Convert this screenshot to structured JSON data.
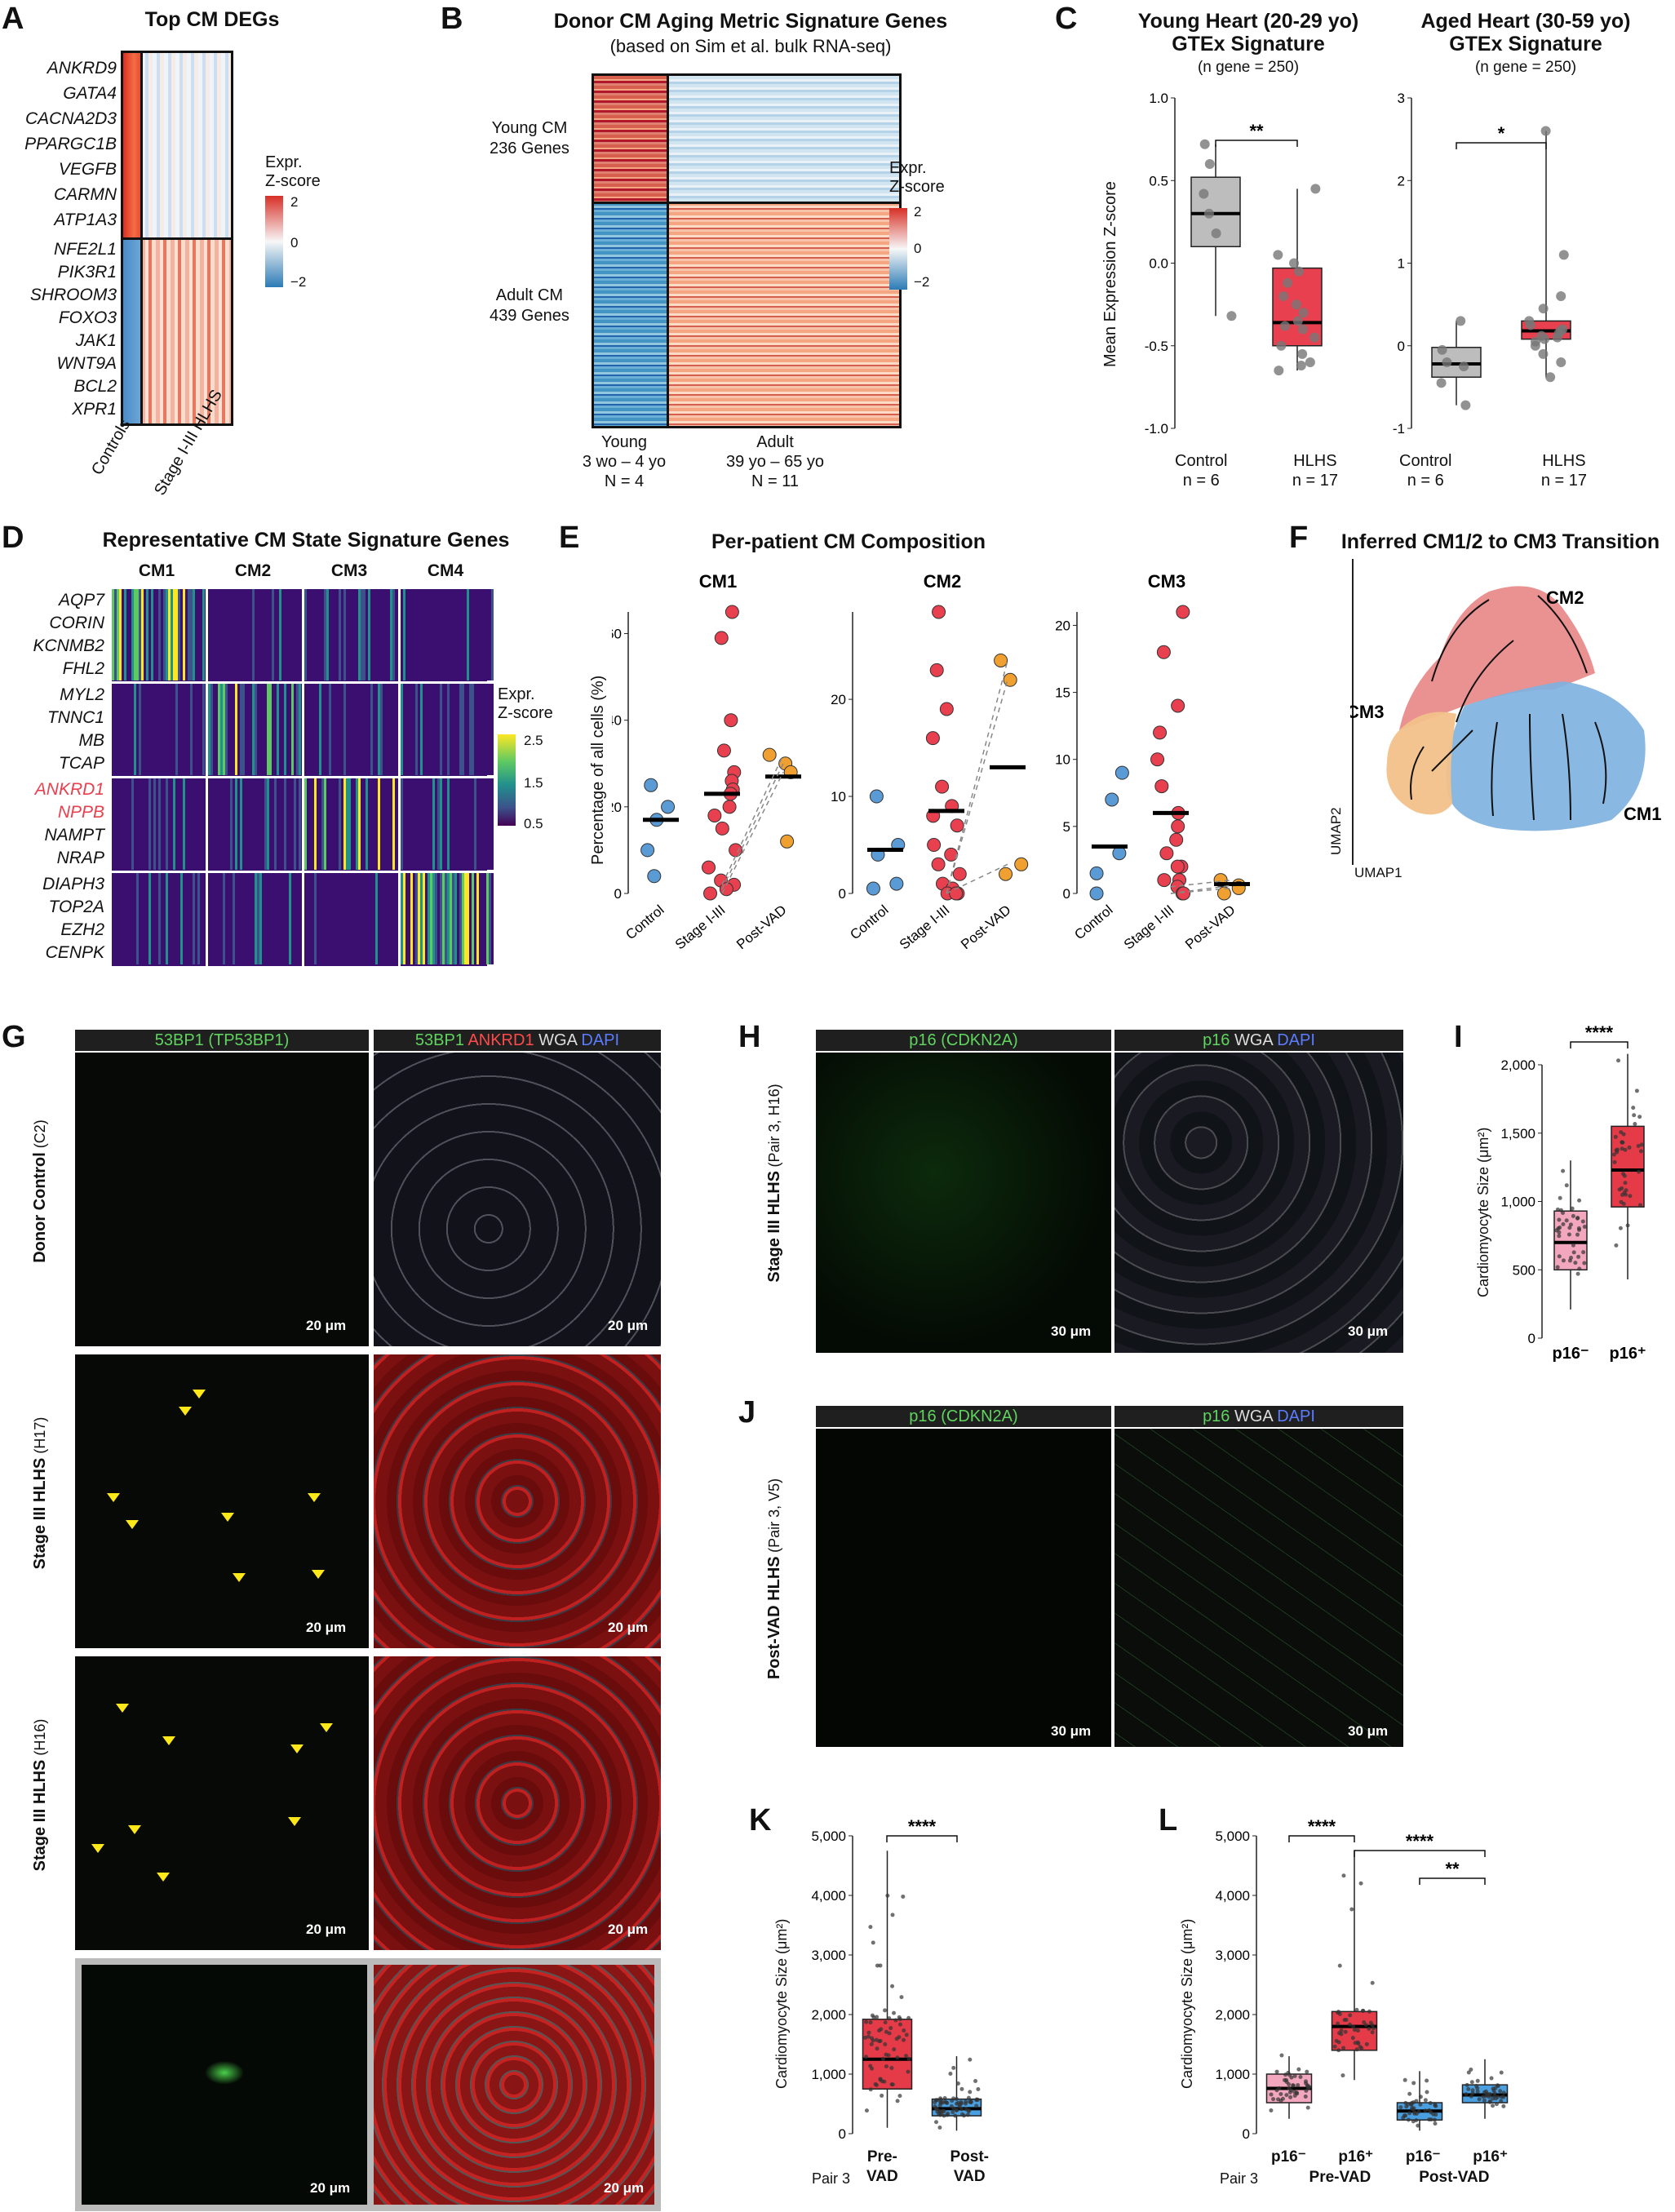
{
  "panels": {
    "A": {
      "letter": "A",
      "title": "Top CM DEGs",
      "genes_top": [
        "ANKRD9",
        "GATA4",
        "CACNA2D3",
        "PPARGC1B",
        "VEGFB",
        "CARMN",
        "ATP1A3"
      ],
      "genes_bottom": [
        "NFE2L1",
        "PIK3R1",
        "SHROOM3",
        "FOXO3",
        "JAK1",
        "WNT9A",
        "BCL2",
        "XPR1"
      ],
      "legend_title": "Expr.\nZ-score",
      "legend_ticks": [
        "2",
        "0",
        "−2"
      ],
      "x_labels": [
        "Controls",
        "Stage I-III HLHS"
      ]
    },
    "B": {
      "letter": "B",
      "title": "Donor CM Aging Metric Signature Genes",
      "subtitle": "(based on Sim et al. bulk RNA-seq)",
      "row_group_1": "Young CM\n236 Genes",
      "row_group_2": "Adult CM\n439 Genes",
      "col_young": "Young\n3 wo – 4 yo\nN = 4",
      "col_adult": "Adult\n39 yo – 65 yo\nN = 11",
      "legend_title": "Expr.\nZ-score",
      "legend_ticks": [
        "2",
        "0",
        "−2"
      ]
    },
    "C": {
      "letter": "C",
      "left_title": "Young Heart (20-29 yo)\nGTEx Signature",
      "left_sub": "(n gene = 250)",
      "right_title": "Aged Heart (30-59 yo)\nGTEx Signature",
      "right_sub": "(n gene = 250)",
      "ylabel": "Mean Expression Z-score",
      "left_sig": "**",
      "right_sig": "*",
      "cat1": "Control\nn = 6",
      "cat2": "HLHS\nn = 17"
    },
    "D": {
      "letter": "D",
      "title": "Representative CM State Signature Genes",
      "states": [
        "CM1",
        "CM2",
        "CM3",
        "CM4"
      ],
      "genes": [
        [
          "AQP7",
          "CORIN",
          "KCNMB2",
          "FHL2"
        ],
        [
          "MYL2",
          "TNNC1",
          "MB",
          "TCAP"
        ],
        [
          "ANKRD1",
          "NPPB",
          "NAMPT",
          "NRAP"
        ],
        [
          "DIAPH3",
          "TOP2A",
          "EZH2",
          "CENPK"
        ]
      ],
      "red_genes": [
        "ANKRD1",
        "NPPB"
      ],
      "legend_title": "Expr.\nZ-score",
      "legend_ticks": [
        "2.5",
        "1.5",
        "0.5"
      ]
    },
    "E": {
      "letter": "E",
      "title": "Per-patient CM Composition",
      "ylabel": "Percentage of all cells (%)",
      "subplots": [
        "CM1",
        "CM2",
        "CM3"
      ],
      "groups": [
        "Control",
        "Stage I-III",
        "Post-VAD"
      ]
    },
    "F": {
      "letter": "F",
      "title": "Inferred CM1/2 to CM3 Transition",
      "labels": [
        "CM2",
        "CM3",
        "CM1"
      ],
      "xlab": "UMAP1",
      "ylab": "UMAP2"
    },
    "G": {
      "letter": "G",
      "hdr_left": "53BP1 (TP53BP1)",
      "hdr_right": [
        "53BP1",
        "ANKRD1",
        "WGA",
        "DAPI"
      ],
      "rows": [
        {
          "title": "Donor Control",
          "sub": "(C2)"
        },
        {
          "title": "Stage III HLHS",
          "sub": "(H17)"
        },
        {
          "title": "Stage III HLHS",
          "sub": "(H16)"
        }
      ],
      "scale": "20 μm"
    },
    "H": {
      "letter": "H",
      "hdr_left": "p16 (CDKN2A)",
      "hdr_right": [
        "p16",
        "WGA",
        "DAPI"
      ],
      "row_title": "Stage III HLHS",
      "row_sub": "(Pair 3, H16)",
      "scale": "30 μm"
    },
    "I": {
      "letter": "I",
      "ylabel": "Cardiomyocyte Size (μm²)",
      "sig": "****",
      "cats": [
        "p16⁻",
        "p16⁺"
      ],
      "yticks": [
        "2,000",
        "1,500",
        "1,000",
        "500",
        "0"
      ]
    },
    "J": {
      "letter": "J",
      "hdr_left": "p16 (CDKN2A)",
      "hdr_right": [
        "p16",
        "WGA",
        "DAPI"
      ],
      "row_title": "Post-VAD HLHS",
      "row_sub": "(Pair 3, V5)",
      "scale": "30 μm"
    },
    "K": {
      "letter": "K",
      "ylabel": "Cardiomyocyte Size (μm²)",
      "sig": "****",
      "pair": "Pair 3",
      "cats": [
        "Pre-\nVAD",
        "Post-\nVAD"
      ],
      "yticks": [
        "5,000",
        "4,000",
        "3,000",
        "2,000",
        "1,000",
        "0"
      ]
    },
    "L": {
      "letter": "L",
      "ylabel": "Cardiomyocyte Size (μm²)",
      "sig": [
        "****",
        "****",
        "**"
      ],
      "pair": "Pair 3",
      "cats": [
        "p16⁻",
        "p16⁺",
        "p16⁻",
        "p16⁺"
      ],
      "groups": [
        "Pre-VAD",
        "Post-VAD"
      ],
      "yticks": [
        "5,000",
        "4,000",
        "3,000",
        "2,000",
        "1,000",
        "0"
      ]
    }
  },
  "chart_data": [
    {
      "panel": "C-left",
      "type": "box",
      "title": "Young Heart (20-29 yo) GTEx Signature",
      "ylabel": "Mean Expression Z-score",
      "ylim": [
        -1.0,
        1.0
      ],
      "categories": [
        "Control",
        "HLHS"
      ],
      "box": [
        {
          "q1": 0.1,
          "median": 0.3,
          "q3": 0.52,
          "min": -0.32,
          "max": 0.72
        },
        {
          "q1": -0.5,
          "median": -0.36,
          "q3": -0.03,
          "min": -0.65,
          "max": 0.45
        }
      ],
      "points": [
        [
          0.72,
          0.6,
          0.42,
          0.3,
          0.18,
          -0.32
        ],
        [
          0.45,
          0.05,
          0.0,
          -0.05,
          -0.12,
          -0.2,
          -0.25,
          -0.3,
          -0.35,
          -0.38,
          -0.4,
          -0.45,
          -0.5,
          -0.55,
          -0.6,
          -0.62,
          -0.65
        ]
      ]
    },
    {
      "panel": "C-right",
      "type": "box",
      "title": "Aged Heart (30-59 yo) GTEx Signature",
      "ylim": [
        -1,
        3
      ],
      "categories": [
        "Control",
        "HLHS"
      ],
      "box": [
        {
          "q1": -0.38,
          "median": -0.22,
          "q3": -0.02,
          "min": -0.72,
          "max": 0.3
        },
        {
          "q1": 0.08,
          "median": 0.18,
          "q3": 0.3,
          "min": -0.38,
          "max": 2.6
        }
      ],
      "points": [
        [
          0.3,
          -0.05,
          -0.2,
          -0.25,
          -0.45,
          -0.72
        ],
        [
          2.6,
          1.1,
          0.6,
          0.45,
          0.3,
          0.25,
          0.2,
          0.18,
          0.15,
          0.12,
          0.1,
          0.08,
          0.05,
          0.0,
          -0.1,
          -0.2,
          -0.38
        ]
      ]
    },
    {
      "panel": "E-CM1",
      "type": "scatter",
      "title": "CM1",
      "ylabel": "Percentage of all cells (%)",
      "ylim": [
        0,
        65
      ],
      "categories": [
        "Control",
        "Stage I-III",
        "Post-VAD"
      ],
      "means": [
        17,
        23,
        27
      ],
      "points": [
        [
          25,
          20,
          17,
          10,
          4
        ],
        [
          65,
          59,
          40,
          33,
          28,
          26,
          24,
          23,
          20,
          18,
          15,
          10,
          6,
          3,
          2,
          1,
          0
        ],
        [
          32,
          30,
          28,
          12
        ]
      ]
    },
    {
      "panel": "E-CM2",
      "type": "scatter",
      "title": "CM2",
      "ylim": [
        0,
        29
      ],
      "categories": [
        "Control",
        "Stage I-III",
        "Post-VAD"
      ],
      "means": [
        4.5,
        8.5,
        13
      ],
      "points": [
        [
          10,
          5,
          4,
          1,
          0.5
        ],
        [
          29,
          23,
          19,
          16,
          11,
          9,
          8,
          7,
          5,
          4,
          3,
          2,
          1,
          0.5,
          0,
          0,
          0
        ],
        [
          24,
          22,
          3,
          2
        ]
      ]
    },
    {
      "panel": "E-CM3",
      "type": "scatter",
      "title": "CM3",
      "ylim": [
        0,
        21
      ],
      "categories": [
        "Control",
        "Stage I-III",
        "Post-VAD"
      ],
      "means": [
        3.5,
        6,
        0.7
      ],
      "points": [
        [
          9,
          7,
          3,
          1.5,
          0
        ],
        [
          21,
          18,
          14,
          12,
          10,
          8,
          6,
          5,
          4,
          3,
          2,
          2,
          1,
          1,
          0.5,
          0,
          0
        ],
        [
          1,
          0.6,
          0.4,
          0
        ]
      ]
    },
    {
      "panel": "I",
      "type": "box",
      "ylabel": "Cardiomyocyte Size (μm²)",
      "ylim": [
        0,
        2000
      ],
      "categories": [
        "p16⁻",
        "p16⁺"
      ],
      "box": [
        {
          "q1": 500,
          "median": 700,
          "q3": 930,
          "min": 210,
          "max": 1300
        },
        {
          "q1": 960,
          "median": 1230,
          "q3": 1550,
          "min": 430,
          "max": 2080
        }
      ]
    },
    {
      "panel": "K",
      "type": "box",
      "ylabel": "Cardiomyocyte Size (μm²)",
      "ylim": [
        0,
        5000
      ],
      "categories": [
        "Pre-VAD",
        "Post-VAD"
      ],
      "box": [
        {
          "q1": 750,
          "median": 1250,
          "q3": 1920,
          "min": 100,
          "max": 4750
        },
        {
          "q1": 300,
          "median": 420,
          "q3": 580,
          "min": 50,
          "max": 1300
        }
      ]
    },
    {
      "panel": "L",
      "type": "box",
      "ylabel": "Cardiomyocyte Size (μm²)",
      "ylim": [
        0,
        5000
      ],
      "categories": [
        "p16⁻ Pre-VAD",
        "p16⁺ Pre-VAD",
        "p16⁻ Post-VAD",
        "p16⁺ Post-VAD"
      ],
      "box": [
        {
          "q1": 520,
          "median": 760,
          "q3": 1000,
          "min": 250,
          "max": 1300
        },
        {
          "q1": 1400,
          "median": 1800,
          "q3": 2050,
          "min": 900,
          "max": 4750
        },
        {
          "q1": 230,
          "median": 380,
          "q3": 520,
          "min": 50,
          "max": 1050
        },
        {
          "q1": 520,
          "median": 650,
          "q3": 820,
          "min": 250,
          "max": 1250
        }
      ]
    }
  ],
  "colors": {
    "control": "#5b9bd5",
    "hlhs": "#e8404f",
    "postvad": "#f0a030",
    "grey": "#bdbdbd",
    "red_fill": "#e53b48",
    "pink_fill": "#f3a7bf",
    "blue_fill": "#4a9fe0",
    "arrow": "#ffe81a"
  }
}
